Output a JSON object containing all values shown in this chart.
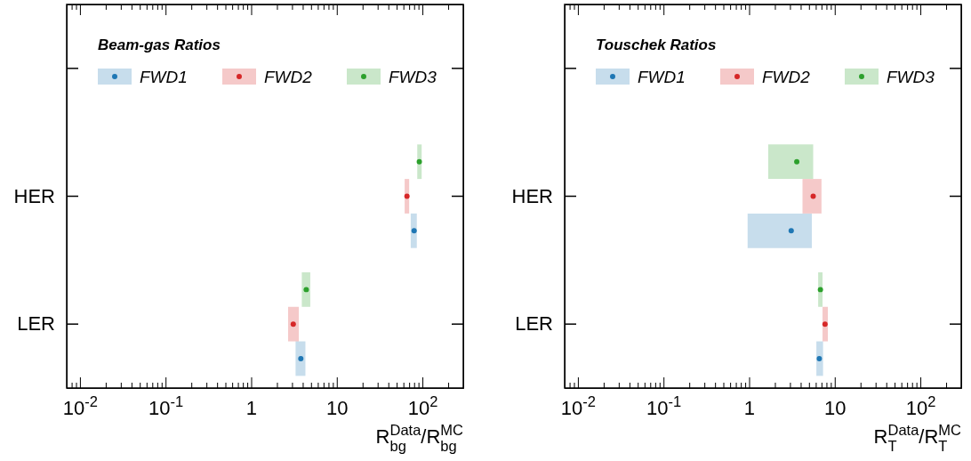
{
  "chart_data": [
    {
      "type": "scatter",
      "orientation": "horizontal",
      "legend_title": "Beam-gas Ratios",
      "xlabel": "R$_{bg}$$^{Data}$/R$_{bg}$$^{MC}$",
      "categories": [
        null,
        "HER",
        "LER"
      ],
      "log": "x",
      "xlim": [
        0.007,
        300
      ],
      "legend": "top",
      "marker": "circle",
      "xticks": [
        {
          "value": 0.007,
          "label": null
        },
        {
          "value": 0.008,
          "label": null
        },
        {
          "value": 0.009,
          "label": null
        },
        {
          "value": 0.01,
          "label": "10$^{-2}$"
        },
        {
          "value": 0.02,
          "label": null
        },
        {
          "value": 0.03,
          "label": null
        },
        {
          "value": 0.04,
          "label": null
        },
        {
          "value": 0.05,
          "label": null
        },
        {
          "value": 0.06,
          "label": null
        },
        {
          "value": 0.07,
          "label": null
        },
        {
          "value": 0.08,
          "label": null
        },
        {
          "value": 0.09,
          "label": null
        },
        {
          "value": 0.1,
          "label": "10$^{-1}$"
        },
        {
          "value": 0.2,
          "label": null
        },
        {
          "value": 0.3,
          "label": null
        },
        {
          "value": 0.4,
          "label": null
        },
        {
          "value": 0.5,
          "label": null
        },
        {
          "value": 0.6,
          "label": null
        },
        {
          "value": 0.7,
          "label": null
        },
        {
          "value": 0.8,
          "label": null
        },
        {
          "value": 0.9,
          "label": null
        },
        {
          "value": 1,
          "label": "1"
        },
        {
          "value": 2,
          "label": null
        },
        {
          "value": 3,
          "label": null
        },
        {
          "value": 4,
          "label": null
        },
        {
          "value": 5,
          "label": null
        },
        {
          "value": 6,
          "label": null
        },
        {
          "value": 7,
          "label": null
        },
        {
          "value": 8,
          "label": null
        },
        {
          "value": 9,
          "label": null
        },
        {
          "value": 10,
          "label": "10"
        },
        {
          "value": 20,
          "label": null
        },
        {
          "value": 30,
          "label": null
        },
        {
          "value": 40,
          "label": null
        },
        {
          "value": 50,
          "label": null
        },
        {
          "value": 60,
          "label": null
        },
        {
          "value": 70,
          "label": null
        },
        {
          "value": 80,
          "label": null
        },
        {
          "value": 90,
          "label": null
        },
        {
          "value": 100,
          "label": "10$^{2}$"
        },
        {
          "value": 200,
          "label": null
        },
        {
          "value": 300,
          "label": null
        }
      ],
      "series": [
        {
          "name": "FWD1",
          "color": "#1f77b4",
          "values": [
            null,
            80,
            3.8
          ],
          "errors": [
            null,
            [
              73,
              86
            ],
            [
              3.3,
              4.3
            ]
          ]
        },
        {
          "name": "FWD2",
          "color": "#d62728",
          "values": [
            null,
            66,
            3.1
          ],
          "errors": [
            null,
            [
              62,
              70
            ],
            [
              2.7,
              3.6
            ]
          ]
        },
        {
          "name": "FWD3",
          "color": "#2ca02c",
          "values": [
            null,
            92,
            4.4
          ],
          "errors": [
            null,
            [
              87,
              98
            ],
            [
              3.9,
              4.9
            ]
          ]
        }
      ]
    },
    {
      "type": "scatter",
      "orientation": "horizontal",
      "legend_title": "Touschek Ratios",
      "xlabel": "R$_{T}$$^{Data}$/R$_{T}$$^{MC}$",
      "categories": [
        null,
        "HER",
        "LER"
      ],
      "log": "x",
      "xlim": [
        0.007,
        300
      ],
      "legend": "top",
      "marker": "circle",
      "xticks": [
        {
          "value": 0.007,
          "label": null
        },
        {
          "value": 0.008,
          "label": null
        },
        {
          "value": 0.009,
          "label": null
        },
        {
          "value": 0.01,
          "label": "10$^{-2}$"
        },
        {
          "value": 0.02,
          "label": null
        },
        {
          "value": 0.03,
          "label": null
        },
        {
          "value": 0.04,
          "label": null
        },
        {
          "value": 0.05,
          "label": null
        },
        {
          "value": 0.06,
          "label": null
        },
        {
          "value": 0.07,
          "label": null
        },
        {
          "value": 0.08,
          "label": null
        },
        {
          "value": 0.09,
          "label": null
        },
        {
          "value": 0.1,
          "label": "10$^{-1}$"
        },
        {
          "value": 0.2,
          "label": null
        },
        {
          "value": 0.3,
          "label": null
        },
        {
          "value": 0.4,
          "label": null
        },
        {
          "value": 0.5,
          "label": null
        },
        {
          "value": 0.6,
          "label": null
        },
        {
          "value": 0.7,
          "label": null
        },
        {
          "value": 0.8,
          "label": null
        },
        {
          "value": 0.9,
          "label": null
        },
        {
          "value": 1,
          "label": "1"
        },
        {
          "value": 2,
          "label": null
        },
        {
          "value": 3,
          "label": null
        },
        {
          "value": 4,
          "label": null
        },
        {
          "value": 5,
          "label": null
        },
        {
          "value": 6,
          "label": null
        },
        {
          "value": 7,
          "label": null
        },
        {
          "value": 8,
          "label": null
        },
        {
          "value": 9,
          "label": null
        },
        {
          "value": 10,
          "label": "10"
        },
        {
          "value": 20,
          "label": null
        },
        {
          "value": 30,
          "label": null
        },
        {
          "value": 40,
          "label": null
        },
        {
          "value": 50,
          "label": null
        },
        {
          "value": 60,
          "label": null
        },
        {
          "value": 70,
          "label": null
        },
        {
          "value": 80,
          "label": null
        },
        {
          "value": 90,
          "label": null
        },
        {
          "value": 100,
          "label": "10$^{2}$"
        },
        {
          "value": 200,
          "label": null
        },
        {
          "value": 300,
          "label": null
        }
      ],
      "series": [
        {
          "name": "FWD1",
          "color": "#1f77b4",
          "values": [
            null,
            3.1,
            6.6
          ],
          "errors": [
            null,
            [
              0.96,
              5.4
            ],
            [
              6.1,
              7.3
            ]
          ]
        },
        {
          "name": "FWD2",
          "color": "#d62728",
          "values": [
            null,
            5.6,
            7.7
          ],
          "errors": [
            null,
            [
              4.2,
              7.0
            ],
            [
              7.2,
              8.3
            ]
          ]
        },
        {
          "name": "FWD3",
          "color": "#2ca02c",
          "values": [
            null,
            3.6,
            6.8
          ],
          "errors": [
            null,
            [
              1.67,
              5.6
            ],
            [
              6.4,
              7.2
            ]
          ]
        }
      ]
    }
  ]
}
